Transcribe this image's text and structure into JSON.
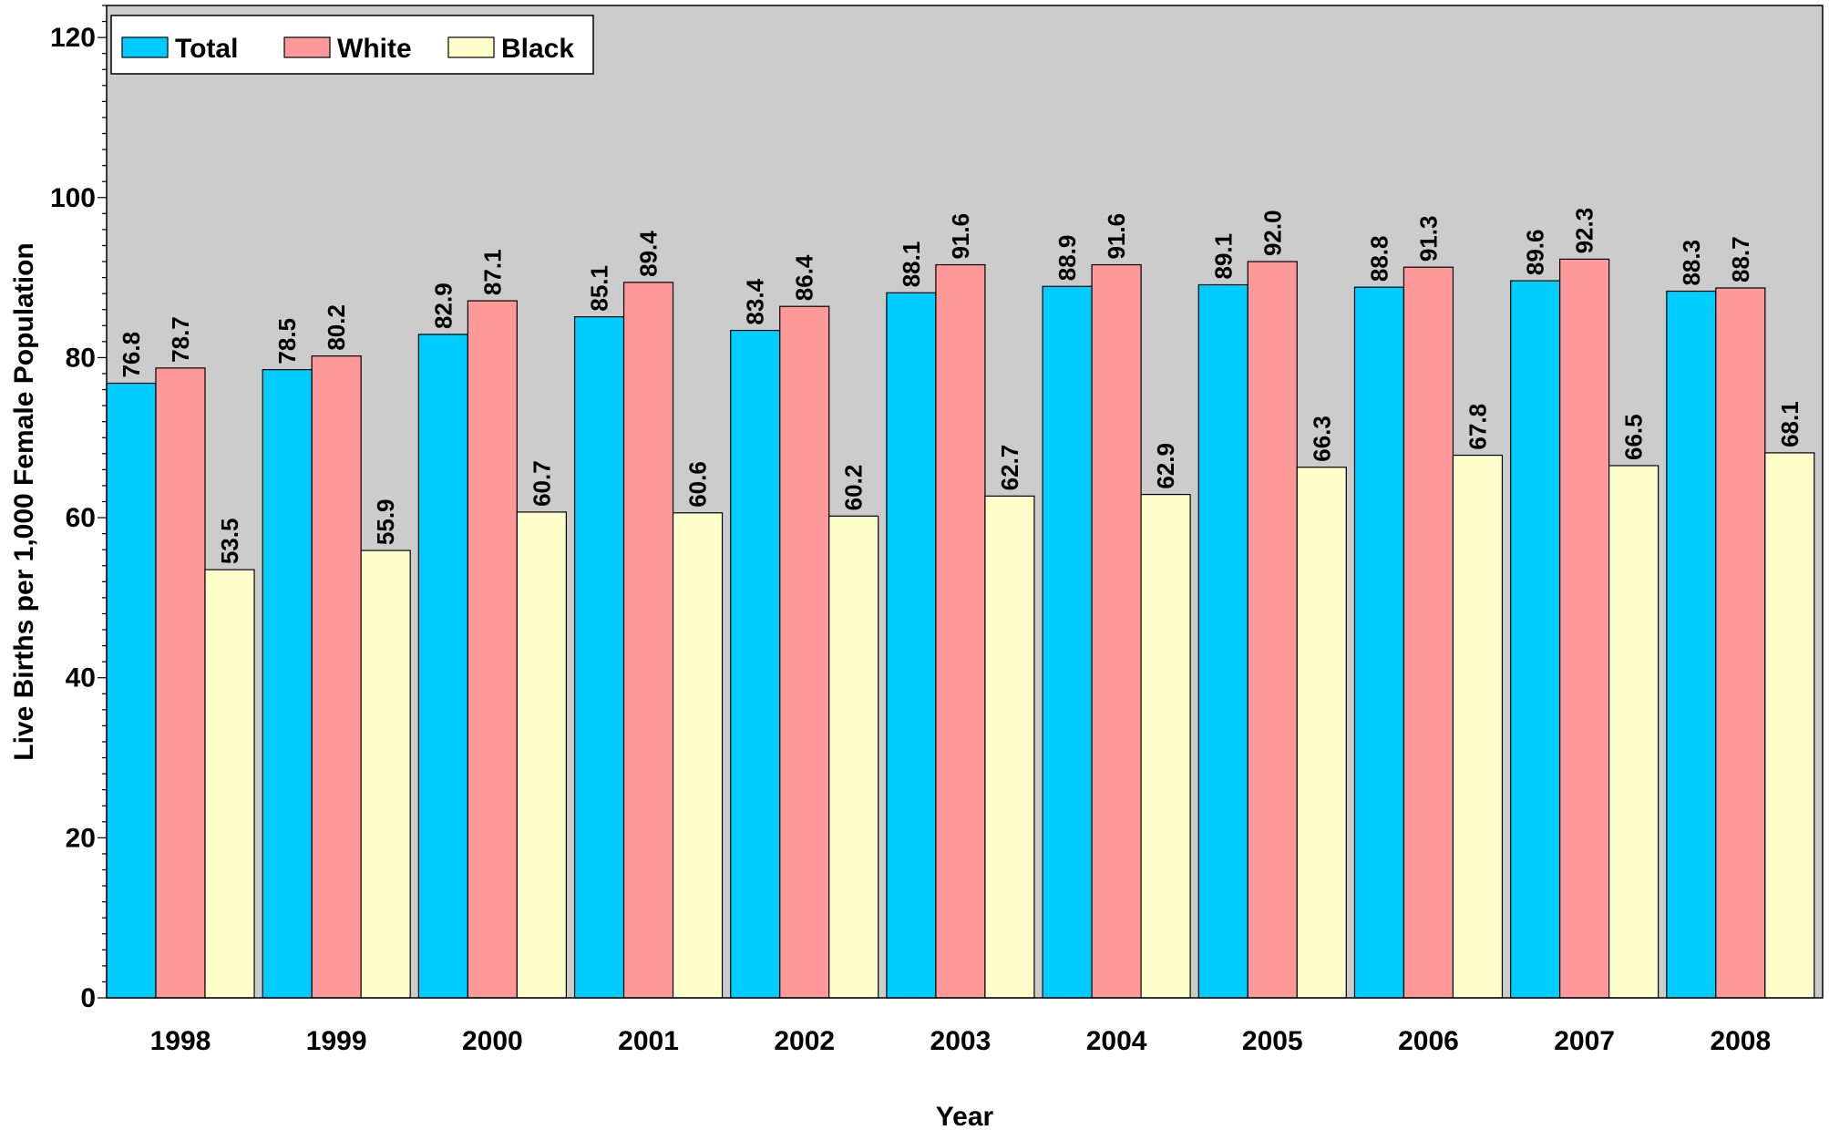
{
  "chart_data": {
    "type": "bar",
    "title": "",
    "xlabel": "Year",
    "ylabel": "Live Births per 1,000 Female Population",
    "ylim": [
      0,
      124
    ],
    "yticks": [
      0,
      20,
      40,
      60,
      80,
      100,
      120
    ],
    "categories": [
      "1998",
      "1999",
      "2000",
      "2001",
      "2002",
      "2003",
      "2004",
      "2005",
      "2006",
      "2007",
      "2008"
    ],
    "series": [
      {
        "name": "Total",
        "color": "#00CCFF",
        "values": [
          76.8,
          78.5,
          82.9,
          85.1,
          83.4,
          88.1,
          88.9,
          89.1,
          88.8,
          89.6,
          88.3
        ]
      },
      {
        "name": "White",
        "color": "#FF9999",
        "values": [
          78.7,
          80.2,
          87.1,
          89.4,
          86.4,
          91.6,
          91.6,
          92.0,
          91.3,
          92.3,
          88.7
        ]
      },
      {
        "name": "Black",
        "color": "#FFFFCC",
        "values": [
          53.5,
          55.9,
          60.7,
          60.6,
          60.2,
          62.7,
          62.9,
          66.3,
          67.8,
          66.5,
          68.1
        ]
      }
    ],
    "data_labels": true,
    "data_label_orientation": "vertical",
    "legend_position": "top-left",
    "plot_background": "#CCCCCC",
    "grid": false
  }
}
